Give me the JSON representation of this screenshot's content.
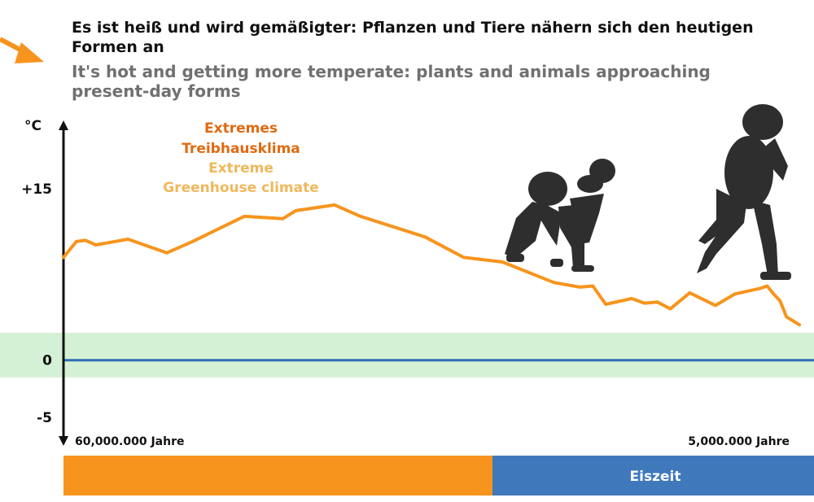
{
  "header": {
    "title_de": "Es ist heiß und wird gemäßigter: Pflanzen und Tiere nähern sich den heutigen Formen an",
    "title_en": "It's hot and getting more temperate: plants and animals approaching present-day forms"
  },
  "chart_data": {
    "type": "line",
    "ylabel": "°C",
    "y_tick_labels": [
      "+15",
      "0",
      "-5"
    ],
    "y_ticks": [
      15,
      0,
      -5
    ],
    "ylim": [
      -7.5,
      21
    ],
    "xlim": [
      60,
      2.5
    ],
    "x_labels": {
      "start": "60,000.000 Jahre",
      "end": "5,000.000 Jahre"
    },
    "series": [
      {
        "color": "#f7941d",
        "x": [
          60.0,
          59.0,
          58.3,
          57.5,
          55.0,
          52.0,
          50.0,
          46.0,
          43.0,
          42.0,
          39.0,
          37.0,
          32.0,
          29.0,
          26.0,
          22.0,
          20.0,
          19.0,
          18.0,
          16.0,
          15.0,
          14.0,
          13.0,
          11.5,
          9.5,
          8.0,
          6.0,
          5.5,
          5.0,
          4.5,
          4.0,
          3.0
        ],
        "y": [
          9.0,
          10.4,
          10.5,
          10.1,
          10.6,
          9.4,
          10.4,
          12.6,
          12.4,
          13.1,
          13.6,
          12.6,
          10.8,
          9.0,
          8.6,
          6.8,
          6.4,
          6.5,
          4.9,
          5.4,
          5.0,
          5.1,
          4.5,
          5.9,
          4.8,
          5.8,
          6.3,
          6.5,
          5.8,
          5.2,
          3.8,
          3.1
        ]
      }
    ],
    "band": {
      "y_from": -1.5,
      "y_to": 2.4,
      "color": "#d5f1d5"
    },
    "zero_line_color": "#2f6db5",
    "annotations": [
      {
        "text": "Extremes",
        "color": "#e06a10"
      },
      {
        "text": "Treibhausklima",
        "color": "#e06a10"
      },
      {
        "text": "Extreme",
        "color": "#f0b85b"
      },
      {
        "text": "Greenhouse climate",
        "color": "#f0b85b"
      }
    ],
    "period_bar": [
      {
        "label": "",
        "color": "#f7941d"
      },
      {
        "label": "Eiszeit",
        "color": "#3f79bc"
      }
    ]
  },
  "decor": {
    "arrow_color": "#f7941d",
    "figures_color": "#2e2e2e"
  }
}
